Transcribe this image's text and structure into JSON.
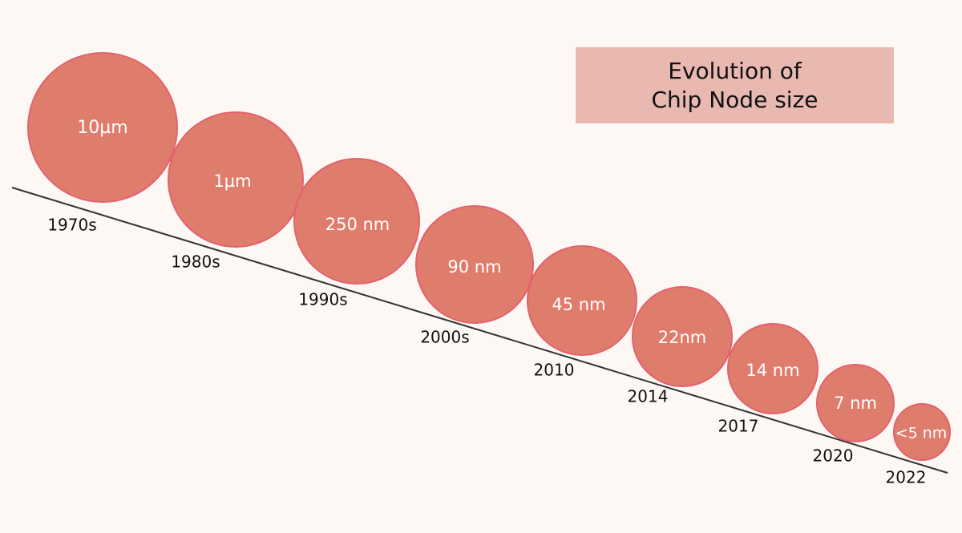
{
  "title": {
    "line1": "Evolution of",
    "line2": "Chip Node size"
  },
  "colors": {
    "background": "#fdf8f4",
    "circle_fill": "#df7d6c",
    "circle_stroke": "#e5606e",
    "title_box": "#e8b8b1",
    "axis_line": "#333333",
    "circle_text": "#ffffff",
    "era_text": "#111111"
  },
  "nodes": [
    {
      "size": "10µm",
      "era": "1970s"
    },
    {
      "size": "1µm",
      "era": "1980s"
    },
    {
      "size": "250 nm",
      "era": "1990s"
    },
    {
      "size": "90 nm",
      "era": "2000s"
    },
    {
      "size": "45 nm",
      "era": "2010"
    },
    {
      "size": "22nm",
      "era": "2014"
    },
    {
      "size": "14 nm",
      "era": "2017"
    },
    {
      "size": "7 nm",
      "era": "2020"
    },
    {
      "size": "<5 nm",
      "era": "2022"
    }
  ]
}
